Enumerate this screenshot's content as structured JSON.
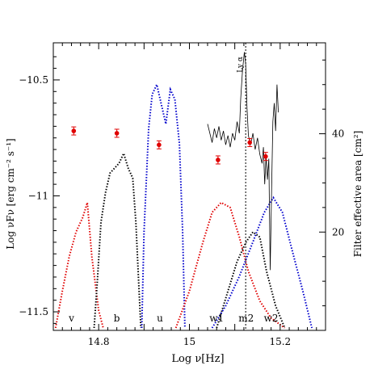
{
  "chart_data": {
    "type": "scatter",
    "xlabel": "Log ν[Hz]",
    "ylabel_left": "Log νFν [erg cm⁻² s⁻¹]",
    "ylabel_right": "Filter effective area [cm²]",
    "xlim": [
      14.7,
      15.3
    ],
    "ylim": [
      -11.58,
      -10.34
    ],
    "y2lim": [
      0,
      58.5
    ],
    "x_ticks": [
      "14.8",
      "14.9",
      "15",
      "15.1",
      "15.2"
    ],
    "x_tick_labels": [
      "14.8",
      "15",
      "15.2"
    ],
    "y_tick_labels": [
      "-10.5",
      "-11",
      "-11.5"
    ],
    "y2_tick_labels": [
      "20",
      "40"
    ],
    "line_annotation": {
      "label": "Ly α",
      "x": 15.124
    },
    "filter_labels": [
      {
        "text": "v",
        "x": 14.74
      },
      {
        "text": "b",
        "x": 14.84
      },
      {
        "text": "u",
        "x": 14.935
      },
      {
        "text": "w1",
        "x": 15.06
      },
      {
        "text": "m2",
        "x": 15.125
      },
      {
        "text": "w2",
        "x": 15.18
      }
    ],
    "photometry": [
      {
        "x": 14.745,
        "y": -10.72
      },
      {
        "x": 14.84,
        "y": -10.73
      },
      {
        "x": 14.933,
        "y": -10.78
      },
      {
        "x": 15.063,
        "y": -10.845
      },
      {
        "x": 15.133,
        "y": -10.77
      },
      {
        "x": 15.168,
        "y": -10.83
      }
    ],
    "spectrum": [
      [
        15.04,
        -10.69
      ],
      [
        15.045,
        -10.73
      ],
      [
        15.05,
        -10.77
      ],
      [
        15.055,
        -10.71
      ],
      [
        15.06,
        -10.75
      ],
      [
        15.065,
        -10.7
      ],
      [
        15.07,
        -10.76
      ],
      [
        15.075,
        -10.72
      ],
      [
        15.08,
        -10.78
      ],
      [
        15.085,
        -10.74
      ],
      [
        15.09,
        -10.79
      ],
      [
        15.095,
        -10.73
      ],
      [
        15.1,
        -10.76
      ],
      [
        15.105,
        -10.68
      ],
      [
        15.11,
        -10.73
      ],
      [
        15.113,
        -10.58
      ],
      [
        15.117,
        -10.46
      ],
      [
        15.121,
        -10.38
      ],
      [
        15.124,
        -10.43
      ],
      [
        15.127,
        -10.62
      ],
      [
        15.13,
        -10.74
      ],
      [
        15.135,
        -10.78
      ],
      [
        15.14,
        -10.73
      ],
      [
        15.145,
        -10.8
      ],
      [
        15.15,
        -10.75
      ],
      [
        15.155,
        -10.82
      ],
      [
        15.16,
        -10.86
      ],
      [
        15.163,
        -10.79
      ],
      [
        15.166,
        -10.95
      ],
      [
        15.169,
        -10.83
      ],
      [
        15.172,
        -10.93
      ],
      [
        15.175,
        -10.84
      ],
      [
        15.178,
        -11.32
      ],
      [
        15.181,
        -10.98
      ],
      [
        15.184,
        -10.68
      ],
      [
        15.187,
        -10.6
      ],
      [
        15.19,
        -10.72
      ],
      [
        15.193,
        -10.52
      ],
      [
        15.196,
        -10.64
      ]
    ],
    "series": [
      {
        "name": "v",
        "color": "#e00000",
        "points": [
          [
            14.705,
            0.5
          ],
          [
            14.72,
            8
          ],
          [
            14.735,
            15
          ],
          [
            14.75,
            20
          ],
          [
            14.765,
            23
          ],
          [
            14.775,
            26
          ],
          [
            14.785,
            15
          ],
          [
            14.8,
            4
          ],
          [
            14.81,
            0.5
          ]
        ]
      },
      {
        "name": "b",
        "color": "#000000",
        "points": [
          [
            14.79,
            0.5
          ],
          [
            14.797,
            10
          ],
          [
            14.805,
            22
          ],
          [
            14.815,
            28
          ],
          [
            14.825,
            32
          ],
          [
            14.835,
            33
          ],
          [
            14.845,
            34
          ],
          [
            14.855,
            36
          ],
          [
            14.865,
            33
          ],
          [
            14.875,
            31
          ],
          [
            14.882,
            22
          ],
          [
            14.888,
            10
          ],
          [
            14.893,
            0.5
          ]
        ]
      },
      {
        "name": "u",
        "color": "#0000cc",
        "points": [
          [
            14.895,
            0.5
          ],
          [
            14.9,
            20
          ],
          [
            14.91,
            41
          ],
          [
            14.918,
            48
          ],
          [
            14.928,
            50
          ],
          [
            14.938,
            46
          ],
          [
            14.948,
            42
          ],
          [
            14.958,
            49
          ],
          [
            14.968,
            47
          ],
          [
            14.978,
            38
          ],
          [
            14.985,
            20
          ],
          [
            14.99,
            0.5
          ]
        ]
      },
      {
        "name": "w1",
        "color": "#e00000",
        "points": [
          [
            14.97,
            0.5
          ],
          [
            15.0,
            8
          ],
          [
            15.03,
            18
          ],
          [
            15.05,
            24
          ],
          [
            15.07,
            26
          ],
          [
            15.09,
            25
          ],
          [
            15.11,
            19
          ],
          [
            15.13,
            12
          ],
          [
            15.155,
            6
          ],
          [
            15.18,
            2.5
          ],
          [
            15.21,
            0.5
          ]
        ]
      },
      {
        "name": "m2",
        "color": "#000000",
        "points": [
          [
            15.06,
            0.5
          ],
          [
            15.085,
            8
          ],
          [
            15.105,
            14
          ],
          [
            15.125,
            18
          ],
          [
            15.14,
            20
          ],
          [
            15.155,
            19
          ],
          [
            15.17,
            12
          ],
          [
            15.19,
            5
          ],
          [
            15.21,
            0.5
          ]
        ]
      },
      {
        "name": "w2",
        "color": "#0000cc",
        "points": [
          [
            15.05,
            0.5
          ],
          [
            15.08,
            5
          ],
          [
            15.11,
            11
          ],
          [
            15.14,
            18
          ],
          [
            15.165,
            24
          ],
          [
            15.185,
            27
          ],
          [
            15.205,
            24
          ],
          [
            15.23,
            15
          ],
          [
            15.25,
            8
          ],
          [
            15.27,
            0.5
          ]
        ]
      }
    ]
  }
}
